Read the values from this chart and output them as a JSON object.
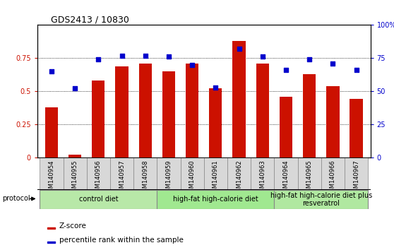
{
  "title": "GDS2413 / 10830",
  "samples": [
    "GSM140954",
    "GSM140955",
    "GSM140956",
    "GSM140957",
    "GSM140958",
    "GSM140959",
    "GSM140960",
    "GSM140961",
    "GSM140962",
    "GSM140963",
    "GSM140964",
    "GSM140965",
    "GSM140966",
    "GSM140967"
  ],
  "zscore": [
    0.38,
    0.02,
    0.58,
    0.69,
    0.71,
    0.65,
    0.71,
    0.52,
    0.88,
    0.71,
    0.46,
    0.63,
    0.54,
    0.44
  ],
  "percentile": [
    65,
    52,
    74,
    77,
    77,
    76,
    70,
    53,
    82,
    76,
    66,
    74,
    71,
    66
  ],
  "bar_color": "#cc1100",
  "dot_color": "#0000cc",
  "ylim_left": [
    0,
    1.0
  ],
  "ylim_right": [
    0,
    100
  ],
  "yticks_left": [
    0,
    0.25,
    0.5,
    0.75
  ],
  "ytick_labels_left": [
    "0",
    "0.25",
    "0.5",
    "0.75"
  ],
  "yticks_right": [
    0,
    25,
    50,
    75,
    100
  ],
  "ytick_labels_right": [
    "0",
    "25",
    "50",
    "75",
    "100%"
  ],
  "group_ranges": [
    [
      0,
      4,
      "control diet",
      "#b8e8a8"
    ],
    [
      5,
      9,
      "high-fat high-calorie diet",
      "#a0e890"
    ],
    [
      10,
      13,
      "high-fat high-calorie diet plus\nresveratrol",
      "#b0e8a0"
    ]
  ],
  "protocol_label": "protocol",
  "legend_zscore": "Z-score",
  "legend_percentile": "percentile rank within the sample",
  "bar_width": 0.55,
  "title_fontsize": 9,
  "axis_label_fontsize": 7,
  "tick_label_fontsize": 7,
  "sample_fontsize": 6,
  "group_fontsize": 7,
  "legend_fontsize": 7.5
}
